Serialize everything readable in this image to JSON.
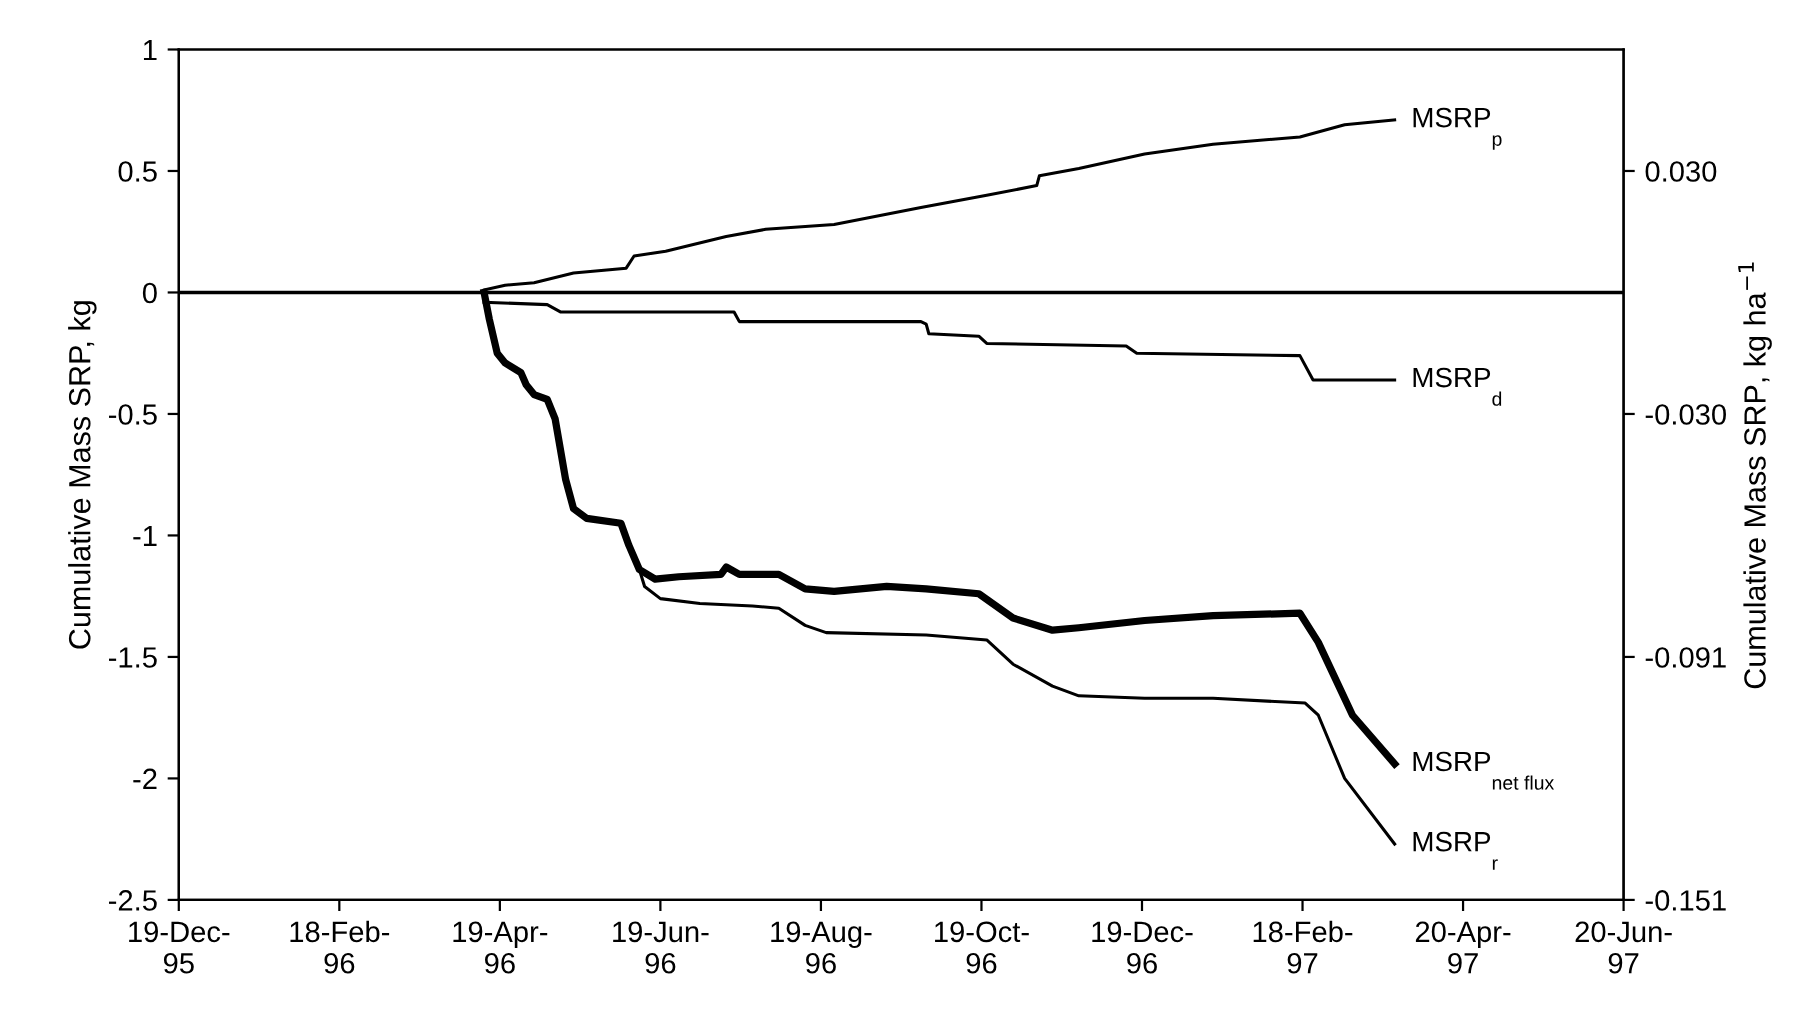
{
  "chart_data": {
    "type": "line",
    "ylabel": "Cumulative Mass SRP, kg",
    "y2label": "Cumulative Mass SRP, kg ha$^{−1}$",
    "xlim": [
      "1995-12-19",
      "1997-06-20"
    ],
    "xticks": [
      {
        "value": "1995-12-19",
        "label": "19-Dec-\n95"
      },
      {
        "value": "1996-02-18",
        "label": "18-Feb-\n96"
      },
      {
        "value": "1996-04-19",
        "label": "19-Apr-\n96"
      },
      {
        "value": "1996-06-19",
        "label": "19-Jun-\n96"
      },
      {
        "value": "1996-08-19",
        "label": "19-Aug-\n96"
      },
      {
        "value": "1996-10-19",
        "label": "19-Oct-\n96"
      },
      {
        "value": "1996-12-19",
        "label": "19-Dec-\n96"
      },
      {
        "value": "1997-02-18",
        "label": "18-Feb-\n97"
      },
      {
        "value": "1997-04-20",
        "label": "20-Apr-\n97"
      },
      {
        "value": "1997-06-20",
        "label": "20-Jun-\n97"
      }
    ],
    "ylim": [
      -2.5,
      1
    ],
    "yticks": [
      -2.5,
      -2,
      -1.5,
      -1,
      -0.5,
      0,
      0.5,
      1
    ],
    "y2lim": [
      -0.151,
      0.0604
    ],
    "y2ticks": [
      {
        "value": 0.0302,
        "label": "0.030"
      },
      {
        "value": -0.0302,
        "label": "-0.030"
      },
      {
        "value": -0.0906,
        "label": "-0.091"
      },
      {
        "value": -0.151,
        "label": "-0.151"
      }
    ],
    "ref_lines": [
      {
        "axis": "y",
        "value": 0,
        "color": "#000000"
      }
    ],
    "grid": false,
    "legend": false,
    "marker": "none",
    "line_style": "solid",
    "series": [
      {
        "name": "MSRP$_{p}$",
        "color": "#000000",
        "x": [
          "1996-04-13",
          "1996-04-21",
          "1996-05-02",
          "1996-05-17",
          "1996-06-06",
          "1996-06-09",
          "1996-06-21",
          "1996-07-14",
          "1996-07-29",
          "1996-08-24",
          "1996-09-26",
          "1996-10-21",
          "1996-11-09",
          "1996-11-10",
          "1996-11-25",
          "1996-12-20",
          "1997-01-15",
          "1997-02-17",
          "1997-03-06",
          "1997-03-25"
        ],
        "values": [
          0.01,
          0.03,
          0.04,
          0.08,
          0.1,
          0.15,
          0.17,
          0.23,
          0.26,
          0.28,
          0.35,
          0.4,
          0.44,
          0.48,
          0.51,
          0.57,
          0.61,
          0.64,
          0.69,
          0.71
        ]
      },
      {
        "name": "MSRP$_{d}$",
        "color": "#000000",
        "x": [
          "1996-04-13",
          "1996-05-07",
          "1996-05-12",
          "1996-07-17",
          "1996-07-19",
          "1996-09-26",
          "1996-09-28",
          "1996-09-29",
          "1996-10-18",
          "1996-10-21",
          "1996-12-13",
          "1996-12-17",
          "1997-02-17",
          "1997-02-22",
          "1997-03-25"
        ],
        "values": [
          -0.04,
          -0.05,
          -0.08,
          -0.08,
          -0.12,
          -0.12,
          -0.13,
          -0.17,
          -0.18,
          -0.21,
          -0.22,
          -0.25,
          -0.26,
          -0.36,
          -0.36
        ]
      },
      {
        "name": "MSRP$_{net flux}$",
        "color": "#000000",
        "x": [
          "1996-04-13",
          "1996-04-15",
          "1996-04-18",
          "1996-04-21",
          "1996-04-27",
          "1996-04-29",
          "1996-05-02",
          "1996-05-07",
          "1996-05-10",
          "1996-05-14",
          "1996-05-17",
          "1996-05-22",
          "1996-06-04",
          "1996-06-07",
          "1996-06-11",
          "1996-06-17",
          "1996-06-26",
          "1996-07-12",
          "1996-07-14",
          "1996-07-19",
          "1996-08-03",
          "1996-08-13",
          "1996-08-24",
          "1996-09-13",
          "1996-09-28",
          "1996-10-18",
          "1996-10-31",
          "1996-11-15",
          "1996-11-25",
          "1996-12-20",
          "1997-01-15",
          "1997-02-17",
          "1997-02-24",
          "1997-03-09",
          "1997-03-25"
        ],
        "values": [
          0,
          -0.11,
          -0.25,
          -0.29,
          -0.33,
          -0.38,
          -0.42,
          -0.44,
          -0.52,
          -0.77,
          -0.89,
          -0.93,
          -0.95,
          -1.04,
          -1.14,
          -1.18,
          -1.17,
          -1.16,
          -1.13,
          -1.16,
          -1.16,
          -1.22,
          -1.23,
          -1.21,
          -1.22,
          -1.24,
          -1.34,
          -1.39,
          -1.38,
          -1.35,
          -1.33,
          -1.32,
          -1.44,
          -1.74,
          -1.94
        ]
      },
      {
        "name": "MSRP$_{r}$",
        "color": "#000000",
        "x": [
          "1996-04-13",
          "1996-04-15",
          "1996-04-18",
          "1996-04-21",
          "1996-04-27",
          "1996-04-29",
          "1996-05-02",
          "1996-05-07",
          "1996-05-10",
          "1996-05-14",
          "1996-05-17",
          "1996-05-22",
          "1996-06-04",
          "1996-06-07",
          "1996-06-11",
          "1996-06-13",
          "1996-06-19",
          "1996-07-04",
          "1996-07-24",
          "1996-08-03",
          "1996-08-13",
          "1996-08-21",
          "1996-09-28",
          "1996-10-21",
          "1996-10-31",
          "1996-11-15",
          "1996-11-25",
          "1996-12-20",
          "1997-01-15",
          "1997-02-19",
          "1997-02-24",
          "1997-03-06",
          "1997-03-25"
        ],
        "values": [
          0,
          -0.11,
          -0.25,
          -0.29,
          -0.33,
          -0.38,
          -0.42,
          -0.44,
          -0.52,
          -0.77,
          -0.89,
          -0.93,
          -0.95,
          -1.04,
          -1.14,
          -1.21,
          -1.26,
          -1.28,
          -1.29,
          -1.3,
          -1.37,
          -1.4,
          -1.41,
          -1.43,
          -1.53,
          -1.62,
          -1.66,
          -1.67,
          -1.67,
          -1.69,
          -1.74,
          -2.0,
          -2.27
        ]
      }
    ]
  }
}
